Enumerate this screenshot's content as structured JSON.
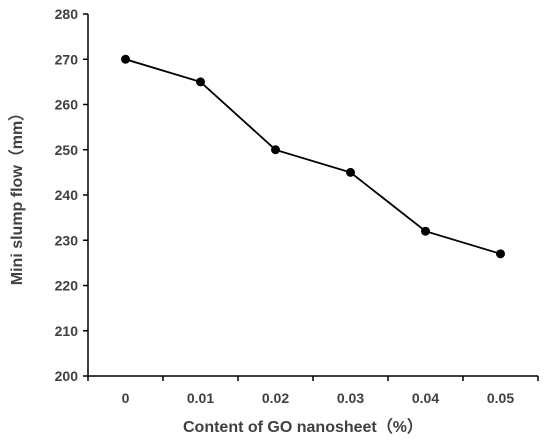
{
  "chart_data": {
    "type": "line",
    "title": "",
    "xlabel": "Content of GO nanosheet（%）",
    "ylabel": "Mini slump flow（mm）",
    "categories": [
      "0",
      "0.01",
      "0.02",
      "0.03",
      "0.04",
      "0.05"
    ],
    "series": [
      {
        "values": [
          270,
          265,
          250,
          245,
          232,
          227
        ]
      }
    ],
    "ylim": [
      200,
      280
    ],
    "yticks": [
      "200",
      "210",
      "220",
      "230",
      "240",
      "250",
      "260",
      "270",
      "280"
    ],
    "grid": false,
    "legend": "none",
    "colors": {
      "line": "#000000",
      "marker": "#000000",
      "axis": "#000000",
      "text": "#404040"
    }
  }
}
